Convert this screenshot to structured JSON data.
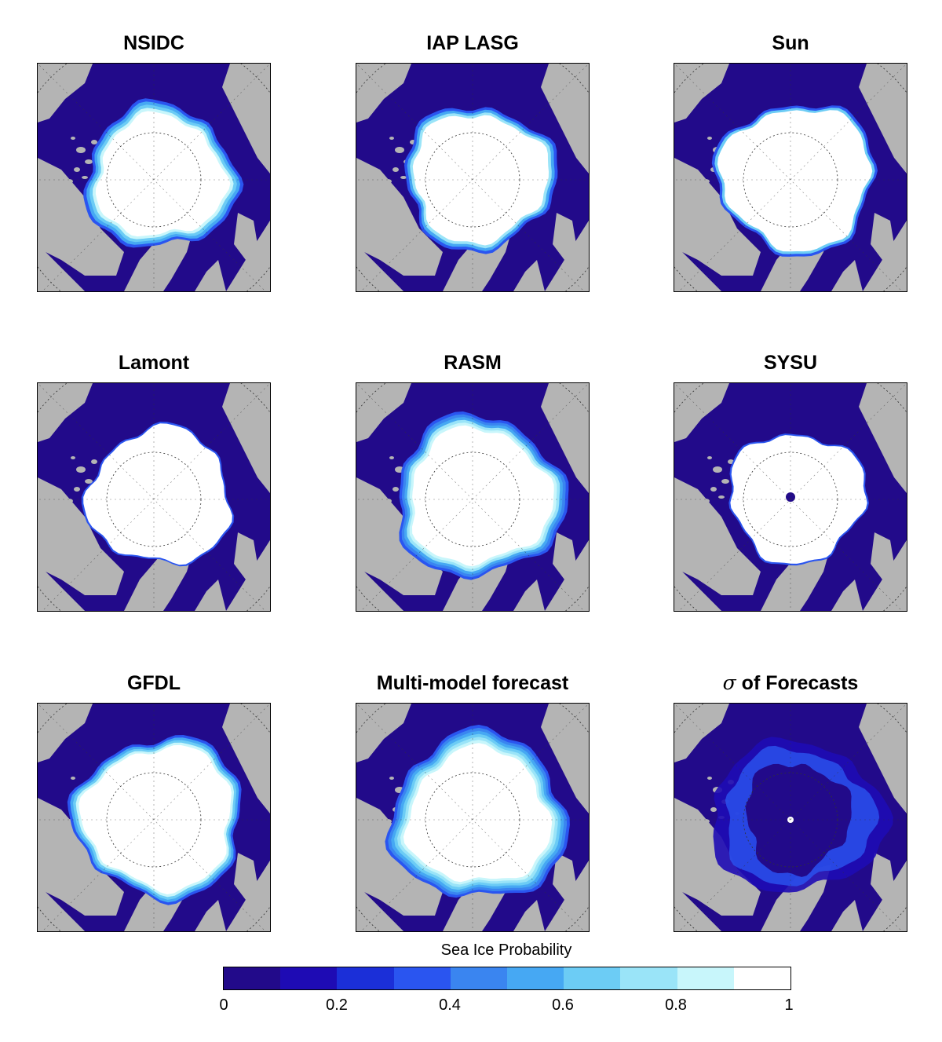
{
  "panels": [
    {
      "id": "nsidc",
      "title": "NSIDC",
      "ice_extent": 0.9,
      "fuzz": 0.7,
      "hole": false
    },
    {
      "id": "iap",
      "title": "IAP LASG",
      "ice_extent": 0.95,
      "fuzz": 0.5,
      "hole": false
    },
    {
      "id": "sun",
      "title": "Sun",
      "ice_extent": 1.05,
      "fuzz": 0.3,
      "hole": false
    },
    {
      "id": "lamont",
      "title": "Lamont",
      "ice_extent": 1.0,
      "fuzz": 0.1,
      "hole": false
    },
    {
      "id": "rasm",
      "title": "RASM",
      "ice_extent": 1.0,
      "fuzz": 0.8,
      "hole": false
    },
    {
      "id": "sysu",
      "title": "SYSU",
      "ice_extent": 0.95,
      "fuzz": 0.1,
      "hole": true
    },
    {
      "id": "gfdl",
      "title": "GFDL",
      "ice_extent": 1.05,
      "fuzz": 0.6,
      "hole": false
    },
    {
      "id": "multi",
      "title": "Multi-model forecast",
      "ice_extent": 1.0,
      "fuzz": 1.0,
      "hole": false
    },
    {
      "id": "sigma",
      "title_symbol": "σ",
      "title": " of Forecasts",
      "ice_extent": 1.0,
      "fuzz": 0,
      "hole": false,
      "sigma": true
    }
  ],
  "colorbar": {
    "title": "Sea Ice Probability",
    "range": [
      0,
      1
    ],
    "ticks": [
      "0",
      "0.2",
      "0.4",
      "0.6",
      "0.8",
      "1"
    ],
    "colors": [
      "#220a8a",
      "#1e0bb4",
      "#1b2fd8",
      "#2a55f0",
      "#3a85f0",
      "#46a8f3",
      "#6cccf5",
      "#9ae4f8",
      "#c8f6fb",
      "#ffffff"
    ]
  },
  "map_colors": {
    "land": "#b4b4b4",
    "ocean": "#220a8a",
    "ice": "#ffffff"
  }
}
